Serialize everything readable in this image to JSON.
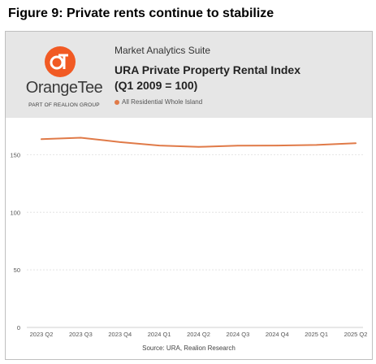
{
  "figure_title": "Figure 9: Private rents continue to stabilize",
  "logo": {
    "wordmark": "OrangeTee",
    "tagline": "PART OF REALION GROUP",
    "mark": "OT",
    "color": "#f15a24"
  },
  "header": {
    "suite": "Market Analytics Suite"
  },
  "source": "Source: URA, Realion Research",
  "chart_data": {
    "type": "line",
    "title": "URA Private Property Rental Index\n(Q1 2009 = 100)",
    "title_lines": [
      "URA Private Property Rental Index",
      "(Q1 2009 = 100)"
    ],
    "xlabel": "",
    "ylabel": "",
    "categories": [
      "2023 Q2",
      "2023 Q3",
      "2023 Q4",
      "2024 Q1",
      "2024 Q2",
      "2024 Q3",
      "2024 Q4",
      "2025 Q1",
      "2025 Q2"
    ],
    "series": [
      {
        "name": "All Residential Whole Island",
        "color": "#e07a48",
        "values": [
          163.5,
          164.8,
          161.0,
          158.0,
          156.8,
          157.9,
          158.0,
          158.5,
          160.0
        ]
      }
    ],
    "ylim": [
      0,
      175
    ],
    "yticks": [
      0,
      50,
      100,
      150
    ],
    "grid": true,
    "legend": "top-left"
  }
}
